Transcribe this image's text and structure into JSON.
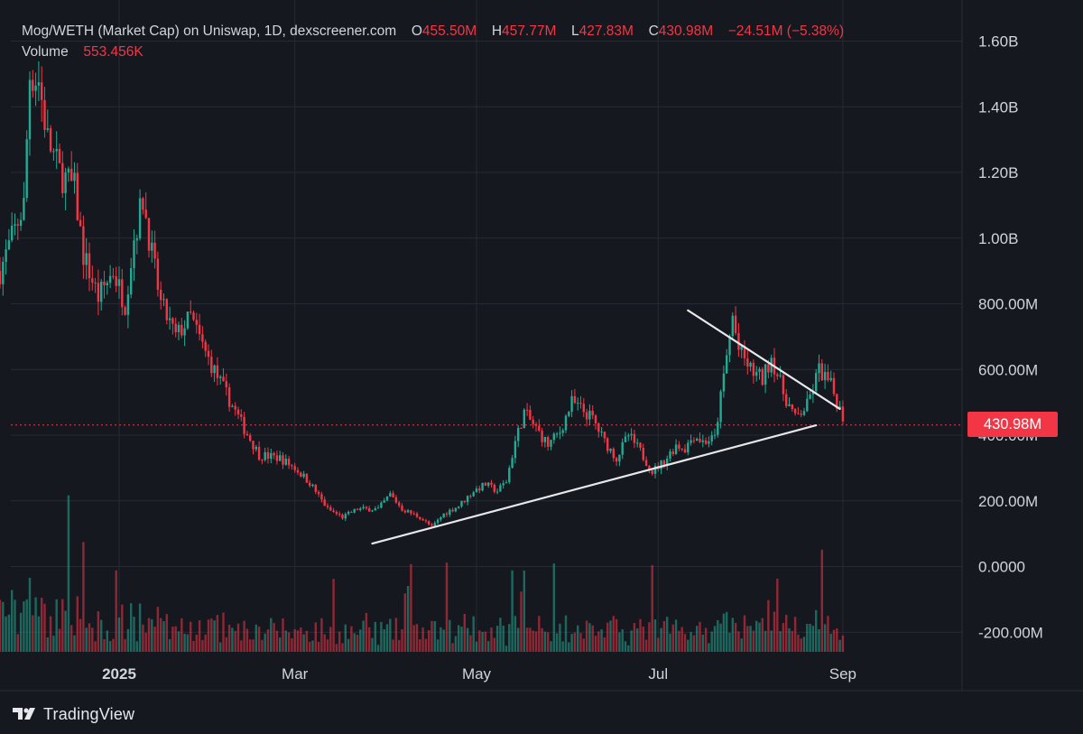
{
  "legend": {
    "symbol": "Mog/WETH (Market Cap) on Uniswap, 1D, dexscreener.com",
    "open_label": "O",
    "open": "455.50M",
    "high_label": "H",
    "high": "457.77M",
    "low_label": "L",
    "low": "427.83M",
    "close_label": "C",
    "close": "430.98M",
    "change": "−24.51M (−5.38%)",
    "volume_label": "Volume",
    "volume": "553.456K"
  },
  "price_tag": "430.98M",
  "brand": "TradingView",
  "colors": {
    "background": "#16181f",
    "grid": "#262a35",
    "up": "#22ab94",
    "down": "#f23645",
    "trendline": "#e8e8ec",
    "text": "#d1d4dc"
  },
  "chart_data": {
    "type": "candlestick",
    "y_axis_ticks": [
      "1.60B",
      "1.40B",
      "1.20B",
      "1.00B",
      "800.00M",
      "600.00M",
      "400.00M",
      "200.00M",
      "0.0000",
      "-200.00M"
    ],
    "y_axis_values": [
      1600,
      1400,
      1200,
      1000,
      800,
      600,
      400,
      200,
      0,
      -200
    ],
    "y_unit": "M",
    "x_axis_ticks": [
      "2025",
      "Mar",
      "May",
      "Jul",
      "Sep"
    ],
    "x_axis_dates": [
      "2025-01-01",
      "2025-03-01",
      "2025-05-01",
      "2025-07-01",
      "2025-09-01"
    ],
    "last_price": 430.98,
    "last_price_line": "dotted",
    "anchors": [
      [
        "2024-11-22",
        900
      ],
      [
        "2024-11-26",
        1000
      ],
      [
        "2024-11-30",
        1100
      ],
      [
        "2024-12-02",
        1500
      ],
      [
        "2024-12-05",
        1480
      ],
      [
        "2024-12-08",
        1300
      ],
      [
        "2024-12-12",
        1200
      ],
      [
        "2024-12-17",
        1150
      ],
      [
        "2024-12-20",
        950
      ],
      [
        "2024-12-25",
        820
      ],
      [
        "2024-12-30",
        900
      ],
      [
        "2025-01-03",
        800
      ],
      [
        "2025-01-06",
        1000
      ],
      [
        "2025-01-09",
        1120
      ],
      [
        "2025-01-12",
        950
      ],
      [
        "2025-01-15",
        800
      ],
      [
        "2025-01-20",
        700
      ],
      [
        "2025-01-25",
        760
      ],
      [
        "2025-01-30",
        650
      ],
      [
        "2025-02-04",
        560
      ],
      [
        "2025-02-08",
        490
      ],
      [
        "2025-02-12",
        420
      ],
      [
        "2025-02-17",
        340
      ],
      [
        "2025-02-24",
        330
      ],
      [
        "2025-03-01",
        300
      ],
      [
        "2025-03-06",
        255
      ],
      [
        "2025-03-12",
        175
      ],
      [
        "2025-03-17",
        150
      ],
      [
        "2025-03-22",
        175
      ],
      [
        "2025-03-29",
        175
      ],
      [
        "2025-04-02",
        220
      ],
      [
        "2025-04-06",
        175
      ],
      [
        "2025-04-12",
        150
      ],
      [
        "2025-04-16",
        120
      ],
      [
        "2025-04-20",
        160
      ],
      [
        "2025-04-25",
        185
      ],
      [
        "2025-04-30",
        230
      ],
      [
        "2025-05-04",
        250
      ],
      [
        "2025-05-08",
        230
      ],
      [
        "2025-05-11",
        260
      ],
      [
        "2025-05-14",
        380
      ],
      [
        "2025-05-17",
        470
      ],
      [
        "2025-05-21",
        420
      ],
      [
        "2025-05-25",
        370
      ],
      [
        "2025-05-29",
        410
      ],
      [
        "2025-06-02",
        500
      ],
      [
        "2025-06-05",
        480
      ],
      [
        "2025-06-09",
        450
      ],
      [
        "2025-06-13",
        380
      ],
      [
        "2025-06-17",
        330
      ],
      [
        "2025-06-21",
        400
      ],
      [
        "2025-06-25",
        350
      ],
      [
        "2025-06-29",
        290
      ],
      [
        "2025-07-03",
        320
      ],
      [
        "2025-07-07",
        370
      ],
      [
        "2025-07-10",
        360
      ],
      [
        "2025-07-13",
        400
      ],
      [
        "2025-07-16",
        380
      ],
      [
        "2025-07-20",
        390
      ],
      [
        "2025-07-24",
        640
      ],
      [
        "2025-07-26",
        760
      ],
      [
        "2025-07-28",
        660
      ],
      [
        "2025-08-01",
        600
      ],
      [
        "2025-08-05",
        570
      ],
      [
        "2025-08-08",
        640
      ],
      [
        "2025-08-12",
        530
      ],
      [
        "2025-08-16",
        450
      ],
      [
        "2025-08-20",
        490
      ],
      [
        "2025-08-24",
        600
      ],
      [
        "2025-08-28",
        550
      ],
      [
        "2025-09-01",
        455
      ]
    ],
    "trendlines": [
      {
        "name": "support",
        "from": [
          "2025-03-27",
          70
        ],
        "to": [
          "2025-08-23",
          430
        ]
      },
      {
        "name": "resistance",
        "from": [
          "2025-07-11",
          780
        ],
        "to": [
          "2025-08-31",
          480
        ]
      }
    ]
  }
}
